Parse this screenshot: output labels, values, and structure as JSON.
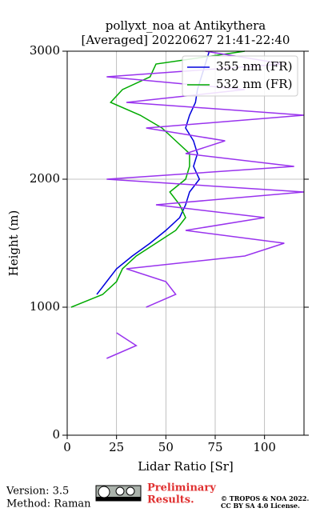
{
  "chart_data": {
    "type": "line",
    "title": [
      "pollyxt_noa at Antikythera",
      "[Averaged] 20220627 21:41-22:40"
    ],
    "x_label": "Lidar Ratio [Sr]",
    "y_label": "Height (m)",
    "y": [
      500,
      600,
      700,
      800,
      900,
      1000,
      1100,
      1200,
      1300,
      1400,
      1500,
      1600,
      1700,
      1800,
      1900,
      2000,
      2100,
      2200,
      2300,
      2400,
      2500,
      2600,
      2700,
      2800,
      2900,
      3000
    ],
    "series": [
      {
        "name": "355 nm (FR)",
        "color": "#0000dd",
        "values": [
          null,
          null,
          null,
          null,
          null,
          null,
          15,
          20,
          25,
          33,
          42,
          50,
          57,
          60,
          62,
          67,
          64,
          66,
          64,
          60,
          62,
          65,
          66,
          68,
          70,
          72
        ]
      },
      {
        "name": "532 nm (FR)",
        "color": "#00aa00",
        "values": [
          null,
          null,
          null,
          null,
          null,
          2,
          18,
          25,
          28,
          35,
          45,
          55,
          60,
          57,
          52,
          60,
          62,
          62,
          55,
          48,
          37,
          22,
          28,
          42,
          45,
          90
        ]
      },
      {
        "color": "#9933ee",
        "values": [
          null,
          20,
          35,
          25,
          null,
          40,
          55,
          50,
          30,
          90,
          110,
          60,
          100,
          45,
          120,
          20,
          115,
          60,
          80,
          40,
          120,
          30,
          90,
          20,
          110,
          70
        ]
      }
    ],
    "xlim": [
      0,
      120
    ],
    "xticks": [
      0,
      25,
      50,
      75,
      100
    ],
    "ylim": [
      0,
      3000
    ],
    "yticks": [
      0,
      1000,
      2000,
      3000
    ],
    "grid": true,
    "legend": "upper right"
  },
  "footer": {
    "version": "Version: 3.5",
    "method": "Method: Raman",
    "preliminary": [
      "Preliminary",
      "Results."
    ],
    "copyright": [
      "© TROPOS & NOA 2022.",
      "CC BY SA 4.0 License."
    ]
  }
}
